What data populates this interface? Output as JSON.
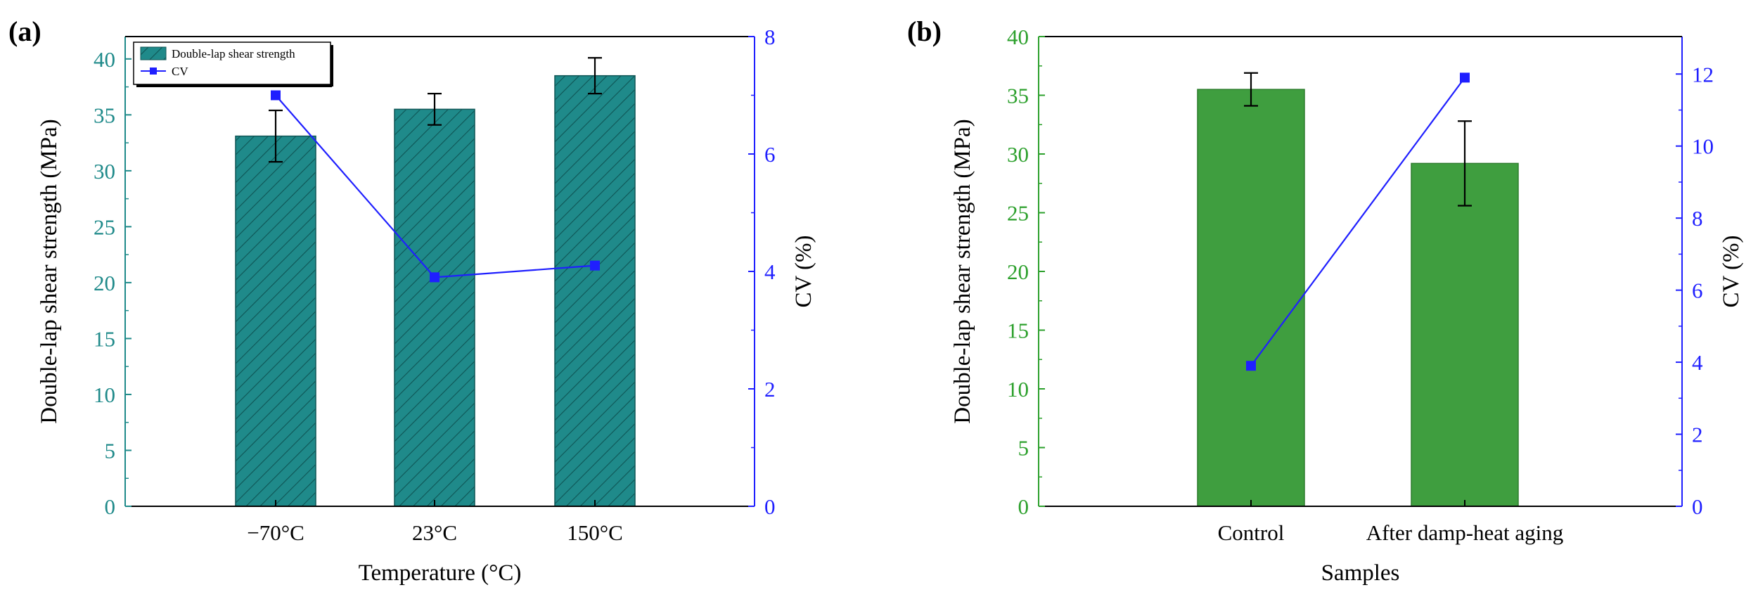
{
  "figure": {
    "panels": [
      "(a)",
      "(b)"
    ]
  },
  "colors": {
    "teal": "#1f8a8a",
    "teal_dark": "#0f5555",
    "green": "#3f9e3f",
    "green_axis": "#2ca02c",
    "blue": "#1f1fff",
    "black": "#000000"
  },
  "chart_data": [
    {
      "panel": "(a)",
      "type": "bar",
      "title": "",
      "xlabel": "Temperature (°C)",
      "ylabel": "Double-lap shear strength (MPa)",
      "y2label": "CV (%)",
      "categories": [
        "−70°C",
        "23°C",
        "150°C"
      ],
      "ylim": [
        0,
        42
      ],
      "yticks": [
        0,
        5,
        10,
        15,
        20,
        25,
        30,
        35,
        40
      ],
      "y2lim": [
        0,
        8
      ],
      "y2ticks": [
        0,
        2,
        4,
        6,
        8
      ],
      "series": [
        {
          "name": "Double-lap shear strength",
          "kind": "bar",
          "axis": "left",
          "values": [
            33.1,
            35.5,
            38.5
          ],
          "errors": [
            2.3,
            1.4,
            1.6
          ],
          "pattern": "hatched"
        },
        {
          "name": "CV",
          "kind": "line",
          "axis": "right",
          "values": [
            7.0,
            3.9,
            4.1
          ],
          "marker": "square"
        }
      ],
      "legend": {
        "position": "top-left",
        "entries": [
          "Double-lap shear strength",
          "CV"
        ]
      }
    },
    {
      "panel": "(b)",
      "type": "bar",
      "title": "",
      "xlabel": "Samples",
      "ylabel": "Double-lap shear strength (MPa)",
      "y2label": "CV (%)",
      "categories": [
        "Control",
        "After damp-heat aging"
      ],
      "ylim": [
        0,
        40
      ],
      "yticks": [
        0,
        5,
        10,
        15,
        20,
        25,
        30,
        35,
        40
      ],
      "y2lim": [
        0,
        13.04
      ],
      "y2ticks": [
        0,
        2,
        4,
        6,
        8,
        10,
        12
      ],
      "series": [
        {
          "name": "Double-lap shear strength",
          "kind": "bar",
          "axis": "left",
          "values": [
            35.5,
            29.2
          ],
          "errors": [
            1.4,
            3.6
          ],
          "pattern": "solid"
        },
        {
          "name": "CV",
          "kind": "line",
          "axis": "right",
          "values": [
            3.9,
            11.9
          ],
          "marker": "square"
        }
      ]
    }
  ]
}
